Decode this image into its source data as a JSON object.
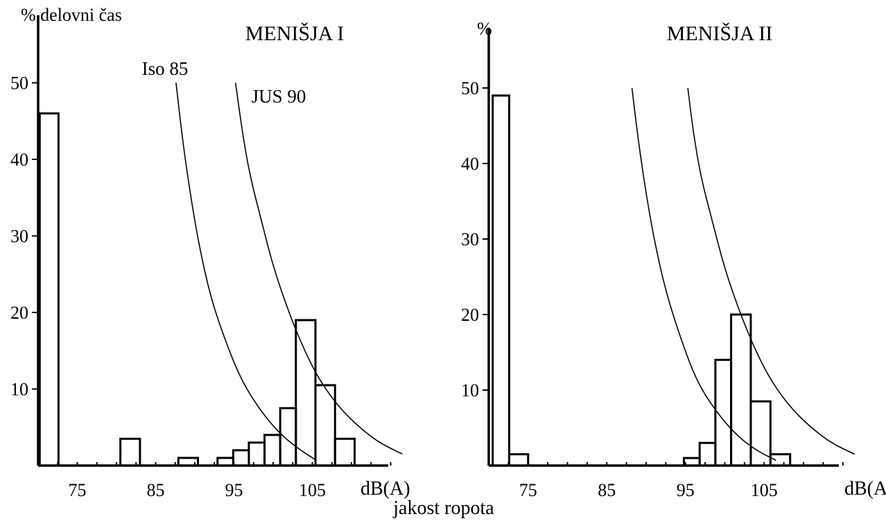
{
  "x_axis_title": "jakost ropota",
  "chart_data": [
    {
      "type": "bar",
      "title": "MENIŠJA I",
      "ylabel": "% delovni čas",
      "xlabel": "dB(A)",
      "xlim": [
        70,
        119
      ],
      "ylim": [
        0,
        58
      ],
      "xticks": [
        75,
        85,
        95,
        105
      ],
      "xtick_labels": [
        "75",
        "85",
        "95",
        "105"
      ],
      "yticks": [
        10,
        20,
        30,
        40,
        50
      ],
      "ytick_labels": [
        "10",
        "20",
        "30",
        "40",
        "50"
      ],
      "bars": [
        {
          "x0": 70.2,
          "x1": 72.6,
          "value": 46
        },
        {
          "x0": 80.5,
          "x1": 83.0,
          "value": 3.5
        },
        {
          "x0": 87.9,
          "x1": 90.4,
          "value": 1
        },
        {
          "x0": 92.9,
          "x1": 94.9,
          "value": 1
        },
        {
          "x0": 94.9,
          "x1": 96.9,
          "value": 2
        },
        {
          "x0": 96.9,
          "x1": 98.9,
          "value": 3
        },
        {
          "x0": 98.9,
          "x1": 100.9,
          "value": 4
        },
        {
          "x0": 100.9,
          "x1": 102.9,
          "value": 7.5
        },
        {
          "x0": 102.9,
          "x1": 105.4,
          "value": 19
        },
        {
          "x0": 105.4,
          "x1": 107.9,
          "value": 10.5
        },
        {
          "x0": 107.9,
          "x1": 110.4,
          "value": 3.5
        }
      ],
      "curves": [
        {
          "label": "Iso 85",
          "points": [
            [
              87.6,
              50
            ],
            [
              88.5,
              42
            ],
            [
              89.5,
              35
            ],
            [
              90.5,
              29
            ],
            [
              92,
              22
            ],
            [
              94,
              16
            ],
            [
              96,
              11
            ],
            [
              98.5,
              7
            ],
            [
              101,
              4
            ],
            [
              103.5,
              2
            ],
            [
              105.5,
              0.7
            ]
          ]
        },
        {
          "label": "JUS 90",
          "points": [
            [
              95.2,
              50
            ],
            [
              96,
              44
            ],
            [
              97,
              38
            ],
            [
              98.5,
              32
            ],
            [
              100,
              26
            ],
            [
              102,
              20
            ],
            [
              104,
              15
            ],
            [
              106,
              11
            ],
            [
              108.5,
              7.5
            ],
            [
              111,
              5
            ],
            [
              113.5,
              3
            ],
            [
              116.5,
              1.5
            ]
          ]
        }
      ]
    },
    {
      "type": "bar",
      "title": "MENIŠJA II",
      "ylabel": "%",
      "xlabel": "dB(A)",
      "xlim": [
        70,
        119
      ],
      "ylim": [
        0,
        58
      ],
      "xticks": [
        75,
        85,
        95,
        105
      ],
      "xtick_labels": [
        "75",
        "85",
        "95",
        "105"
      ],
      "yticks": [
        10,
        20,
        30,
        40,
        50
      ],
      "ytick_labels": [
        "10",
        "20",
        "30",
        "40",
        "50"
      ],
      "bars": [
        {
          "x0": 70.5,
          "x1": 72.6,
          "value": 49
        },
        {
          "x0": 72.6,
          "x1": 75.0,
          "value": 1.5
        },
        {
          "x0": 94.8,
          "x1": 96.8,
          "value": 1
        },
        {
          "x0": 96.8,
          "x1": 98.8,
          "value": 3
        },
        {
          "x0": 98.8,
          "x1": 100.8,
          "value": 14
        },
        {
          "x0": 100.8,
          "x1": 103.3,
          "value": 20
        },
        {
          "x0": 103.3,
          "x1": 105.8,
          "value": 8.5
        },
        {
          "x0": 105.8,
          "x1": 108.3,
          "value": 1.5
        }
      ],
      "curves": [
        {
          "label": "",
          "points": [
            [
              88.2,
              50
            ],
            [
              89,
              43
            ],
            [
              90,
              36
            ],
            [
              91,
              30
            ],
            [
              92.5,
              23
            ],
            [
              94.5,
              16.5
            ],
            [
              96.5,
              11
            ],
            [
              99,
              7
            ],
            [
              101.5,
              4
            ],
            [
              104,
              2
            ],
            [
              106.5,
              0.7
            ]
          ]
        },
        {
          "label": "",
          "points": [
            [
              95.3,
              50
            ],
            [
              96,
              44
            ],
            [
              97,
              38
            ],
            [
              98.5,
              32
            ],
            [
              100,
              26
            ],
            [
              102,
              20
            ],
            [
              104,
              15
            ],
            [
              106,
              11
            ],
            [
              108.5,
              7.5
            ],
            [
              111,
              5
            ],
            [
              113.5,
              3
            ],
            [
              116.5,
              1.5
            ]
          ]
        }
      ]
    }
  ]
}
